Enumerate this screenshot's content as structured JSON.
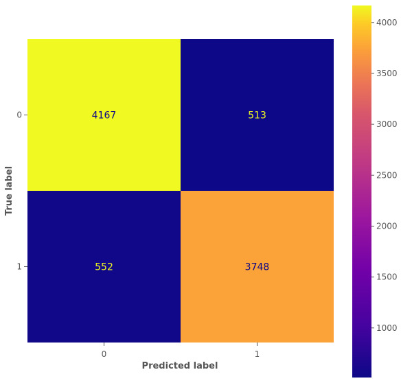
{
  "chart_data": {
    "type": "heatmap",
    "title": "",
    "xlabel": "Predicted label",
    "ylabel": "True label",
    "x_categories": [
      "0",
      "1"
    ],
    "y_categories": [
      "0",
      "1"
    ],
    "matrix": [
      [
        4167,
        513
      ],
      [
        552,
        3748
      ]
    ],
    "colormap": "plasma",
    "colorbar": {
      "range": [
        513,
        4167
      ],
      "ticks": [
        1000,
        1500,
        2000,
        2500,
        3000,
        3500,
        4000
      ]
    },
    "grid": false,
    "colors": {
      "low": "#0d0887",
      "high": "#f0f921",
      "text_on_dark": "#f0f921",
      "text_on_light": "#0d0887"
    }
  }
}
